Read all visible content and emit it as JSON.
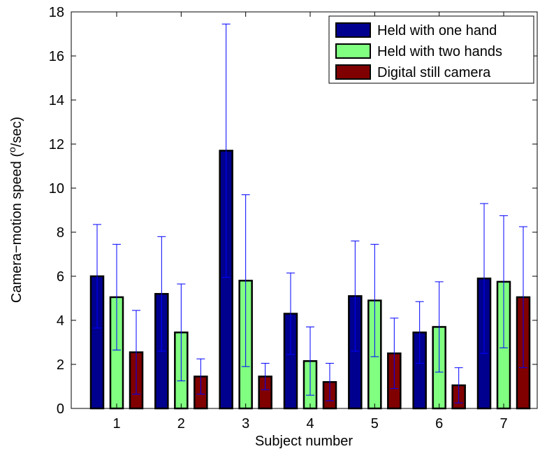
{
  "chart_data": {
    "type": "bar",
    "categories": [
      "1",
      "2",
      "3",
      "4",
      "5",
      "6",
      "7"
    ],
    "series": [
      {
        "name": "Held with one hand",
        "color": "#00008f",
        "values": [
          6.0,
          5.2,
          11.7,
          4.3,
          5.1,
          3.45,
          5.9
        ],
        "error": [
          2.35,
          2.6,
          5.75,
          1.85,
          2.5,
          1.4,
          3.4
        ]
      },
      {
        "name": "Held with two hands",
        "color": "#80ff80",
        "values": [
          5.05,
          3.45,
          5.8,
          2.15,
          4.9,
          3.7,
          5.75
        ],
        "error": [
          2.4,
          2.2,
          3.9,
          1.55,
          2.55,
          2.05,
          3.0
        ]
      },
      {
        "name": "Digital still camera",
        "color": "#800000",
        "values": [
          2.55,
          1.45,
          1.45,
          1.2,
          2.5,
          1.05,
          5.05
        ],
        "error": [
          1.9,
          0.8,
          0.6,
          0.85,
          1.6,
          0.8,
          3.2
        ]
      }
    ],
    "xlabel": "Subject number",
    "ylabel": "Camera−motion speed (",
    "ylabel_sup": "o",
    "ylabel_end": "/sec)",
    "ylim": [
      0,
      18
    ],
    "yticks": [
      "0",
      "2",
      "4",
      "6",
      "8",
      "10",
      "12",
      "14",
      "16",
      "18"
    ],
    "grid": false,
    "legend_position": "top-right",
    "error_bar_color": "#0000ff"
  }
}
